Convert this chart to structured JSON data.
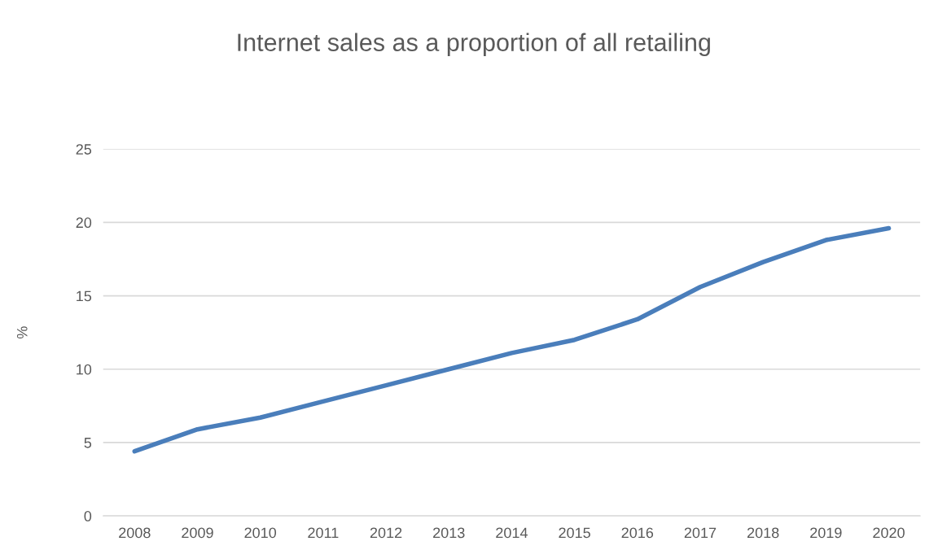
{
  "chart_data": {
    "type": "line",
    "title": "Internet sales as a proportion of all retailing",
    "ylabel": "%",
    "categories": [
      "2008",
      "2009",
      "2010",
      "2011",
      "2012",
      "2013",
      "2014",
      "2015",
      "2016",
      "2017",
      "2018",
      "2019",
      "2020"
    ],
    "series": [
      {
        "color": "#4a7ebb",
        "values": [
          4.4,
          5.9,
          6.7,
          7.8,
          8.9,
          10.0,
          11.1,
          12.0,
          13.4,
          15.6,
          17.3,
          18.8,
          19.6
        ]
      }
    ],
    "ylim": [
      0,
      25
    ],
    "yticks": [
      0,
      5,
      10,
      15,
      20,
      25
    ],
    "grid": "y",
    "marker": "none",
    "line_style": "solid"
  }
}
